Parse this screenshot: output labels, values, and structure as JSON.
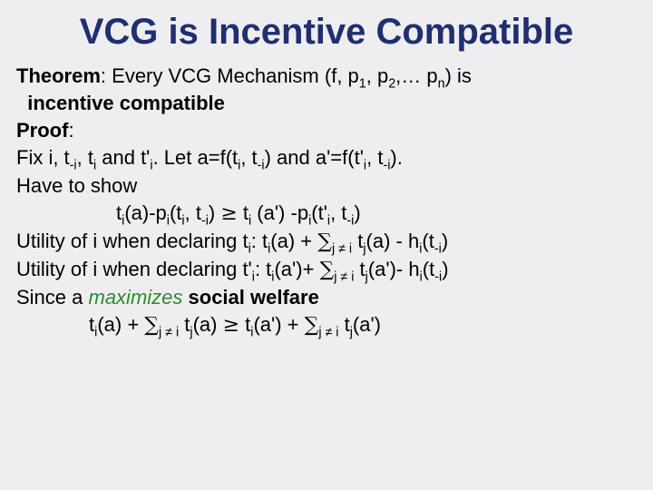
{
  "colors": {
    "background": "#eeeef0",
    "title": "#1f2f6f",
    "body": "#000000",
    "accent_green": "#2e8b2e"
  },
  "fonts": {
    "family": "Comic Sans MS",
    "title_size_pt": 40,
    "title_weight": "bold",
    "body_size_pt": 22,
    "sub_scale": 0.65
  },
  "title": "VCG is Incentive Compatible",
  "t": {
    "theorem_label": "Theorem",
    "theorem_pre": ": Every VCG Mechanism (f, p",
    "theorem_mid_a": ", p",
    "theorem_mid_b": ",… p",
    "theorem_post": ") is",
    "incentive": "incentive compatible",
    "proof_label": "Proof",
    "proof_colon": ":",
    "fix_a": "Fix i, t",
    "fix_b": ", t",
    "fix_c": " and  t'",
    "fix_d": ". Let a=f(t",
    "fix_e": ", t",
    "fix_f": ") and a'=f(t'",
    "fix_g": ", t",
    "fix_h": ").",
    "have": "Have to show",
    "ineq1_a": "t",
    "ineq1_b": "(a)-p",
    "ineq1_c": "(t",
    "ineq1_d": ", t",
    "ineq1_e": ") ",
    "ineq1_f": " t",
    "ineq1_g": " (a') -p",
    "ineq1_h": "(t'",
    "ineq1_i": ", t",
    "ineq1_j": ")",
    "ut_a": "Utility of i when declaring t",
    "ut_b": ": t",
    "ut_c": "(a) + ",
    "ut_d": " t",
    "ut_e": "(a) - h",
    "ut_f": "(t",
    "ut_g": ")",
    "ut2_a": "Utility of i when declaring t'",
    "ut2_b": ": t",
    "ut2_c": "(a')+ ",
    "ut2_d": " t",
    "ut2_e": "(a')- h",
    "ut2_f": "(t",
    "ut2_g": ")",
    "since_a": "Since a ",
    "maximizes": "maximizes",
    "since_b": " social welfare",
    "fin_a": "t",
    "fin_b": "(a) + ",
    "fin_c": " t",
    "fin_d": "(a) ",
    "fin_e": " t",
    "fin_f": "(a') + ",
    "fin_g": " t",
    "fin_h": "(a')"
  },
  "sub": {
    "one": "1",
    "two": "2",
    "n": "n",
    "i": "i",
    "mi": "-i",
    "j": "j",
    "jnei": "j ≠ i"
  },
  "sym": {
    "ge": "≥",
    "sum": "∑"
  }
}
